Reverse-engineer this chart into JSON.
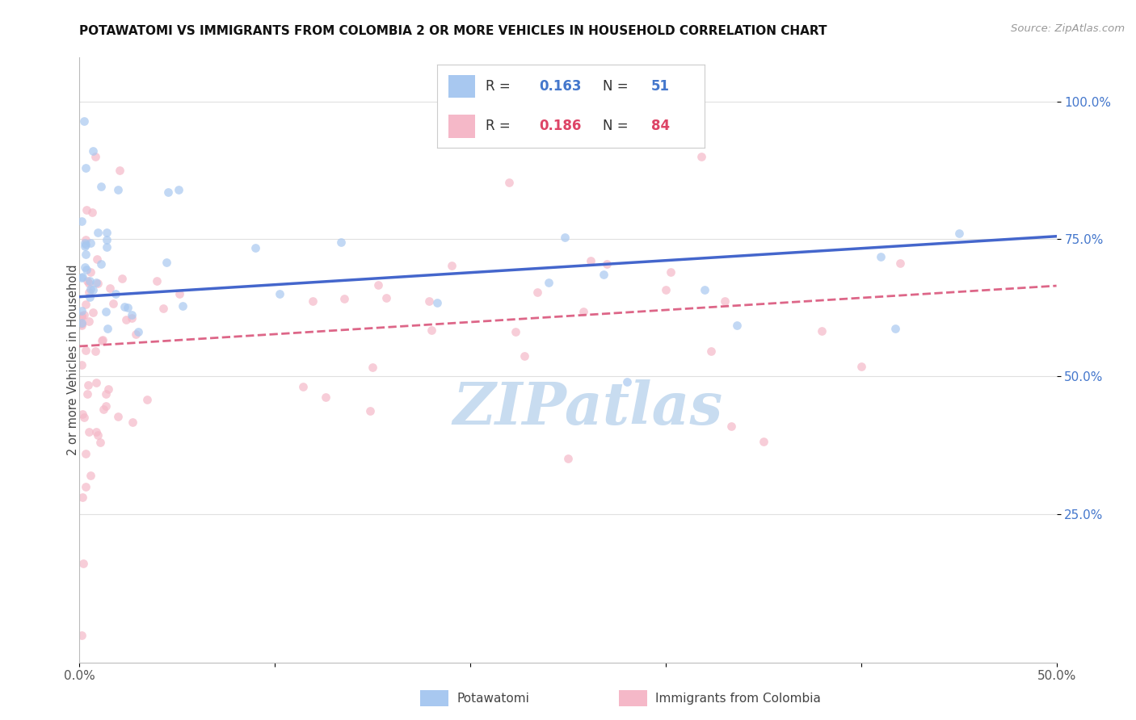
{
  "title": "POTAWATOMI VS IMMIGRANTS FROM COLOMBIA 2 OR MORE VEHICLES IN HOUSEHOLD CORRELATION CHART",
  "source": "Source: ZipAtlas.com",
  "ylabel": "2 or more Vehicles in Household",
  "legend_label1": "Potawatomi",
  "legend_label2": "Immigrants from Colombia",
  "R1": "0.163",
  "N1": "51",
  "R2": "0.186",
  "N2": "84",
  "color_blue": "#A8C8F0",
  "color_pink": "#F5B8C8",
  "line_blue": "#4466CC",
  "line_pink": "#DD6688",
  "scatter_alpha": 0.7,
  "marker_size": 60,
  "xlim": [
    0,
    0.5
  ],
  "ylim": [
    -0.02,
    1.08
  ],
  "background_color": "#FFFFFF",
  "grid_color": "#E0E0E0",
  "blue_line_x0": 0.0,
  "blue_line_y0": 0.645,
  "blue_line_x1": 0.5,
  "blue_line_y1": 0.755,
  "pink_line_x0": 0.0,
  "pink_line_y0": 0.555,
  "pink_line_x1": 0.5,
  "pink_line_y1": 0.665,
  "watermark": "ZIPatlas",
  "watermark_color": "#C8DCF0",
  "ytick_color": "#4477CC",
  "title_color": "#111111",
  "source_color": "#999999"
}
